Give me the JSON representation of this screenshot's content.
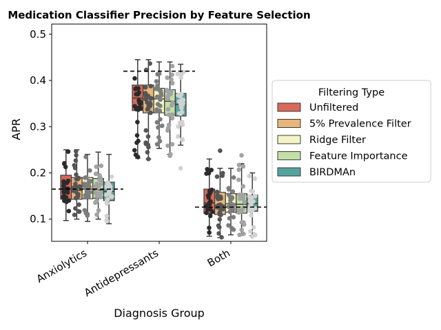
{
  "chart_data": {
    "type": "box",
    "title": "Medication Classifier Precision by Feature Selection",
    "xlabel": "Diagnosis Group",
    "ylabel": "APR",
    "categories": [
      "Anxiolytics",
      "Antidepressants",
      "Both"
    ],
    "ylim": [
      0.052,
      0.522
    ],
    "yticks": [
      0.1,
      0.2,
      0.3,
      0.4,
      0.5
    ],
    "grid": false,
    "legend": {
      "title": "Filtering Type",
      "placement": "outside right",
      "entries": [
        "Unfiltered",
        "5% Prevalence Filter",
        "Ridge Filter",
        "Feature Importance",
        "BIRDMAn"
      ]
    },
    "series_colors": [
      "#d8685a",
      "#e8b57a",
      "#f4f4c4",
      "#c3dfa6",
      "#56a39f"
    ],
    "strip_colors": [
      "#2b2b2b",
      "#555555",
      "#7d7d7d",
      "#a3a3a3",
      "#d2d2d2"
    ],
    "reference_lines": [
      {
        "category": "Anxiolytics",
        "value": 0.165
      },
      {
        "category": "Antidepressants",
        "value": 0.42
      },
      {
        "category": "Both",
        "value": 0.126
      }
    ],
    "series": [
      {
        "name": "Unfiltered",
        "boxes": [
          {
            "min": 0.097,
            "q1": 0.143,
            "median": 0.165,
            "q3": 0.195,
            "max": 0.25
          },
          {
            "min": 0.232,
            "q1": 0.335,
            "median": 0.362,
            "q3": 0.39,
            "max": 0.445
          },
          {
            "min": 0.063,
            "q1": 0.112,
            "median": 0.135,
            "q3": 0.165,
            "max": 0.23
          }
        ]
      },
      {
        "name": "5% Prevalence Filter",
        "boxes": [
          {
            "min": 0.1,
            "q1": 0.143,
            "median": 0.162,
            "q3": 0.19,
            "max": 0.25
          },
          {
            "min": 0.23,
            "q1": 0.33,
            "median": 0.36,
            "q3": 0.39,
            "max": 0.445
          },
          {
            "min": 0.06,
            "q1": 0.11,
            "median": 0.13,
            "q3": 0.158,
            "max": 0.21
          }
        ]
      },
      {
        "name": "Ridge Filter",
        "boxes": [
          {
            "min": 0.095,
            "q1": 0.144,
            "median": 0.165,
            "q3": 0.19,
            "max": 0.24
          },
          {
            "min": 0.253,
            "q1": 0.33,
            "median": 0.36,
            "q3": 0.383,
            "max": 0.44
          },
          {
            "min": 0.066,
            "q1": 0.115,
            "median": 0.133,
            "q3": 0.155,
            "max": 0.21
          }
        ]
      },
      {
        "name": "Feature Importance",
        "boxes": [
          {
            "min": 0.1,
            "q1": 0.145,
            "median": 0.163,
            "q3": 0.188,
            "max": 0.245
          },
          {
            "min": 0.24,
            "q1": 0.325,
            "median": 0.355,
            "q3": 0.38,
            "max": 0.44
          },
          {
            "min": 0.065,
            "q1": 0.113,
            "median": 0.132,
            "q3": 0.155,
            "max": 0.22
          }
        ]
      },
      {
        "name": "BIRDMAn",
        "boxes": [
          {
            "min": 0.09,
            "q1": 0.14,
            "median": 0.16,
            "q3": 0.18,
            "max": 0.24
          },
          {
            "min": 0.26,
            "q1": 0.323,
            "median": 0.348,
            "q3": 0.372,
            "max": 0.435
          },
          {
            "min": 0.064,
            "q1": 0.117,
            "median": 0.134,
            "q3": 0.152,
            "max": 0.2
          }
        ]
      }
    ],
    "outliers": [
      {
        "series": "Unfiltered",
        "category": "Antidepressants",
        "value": 0.235
      },
      {
        "series": "5% Prevalence Filter",
        "category": "Antidepressants",
        "value": 0.23
      },
      {
        "series": "Feature Importance",
        "category": "Antidepressants",
        "value": 0.237
      },
      {
        "series": "BIRDMAn",
        "category": "Antidepressants",
        "value": 0.21
      },
      {
        "series": "5% Prevalence Filter",
        "category": "Both",
        "value": 0.248
      },
      {
        "series": "Feature Importance",
        "category": "Both",
        "value": 0.238
      },
      {
        "series": "BIRDMAn",
        "category": "Both",
        "value": 0.062
      }
    ],
    "points_per_box": 26
  }
}
